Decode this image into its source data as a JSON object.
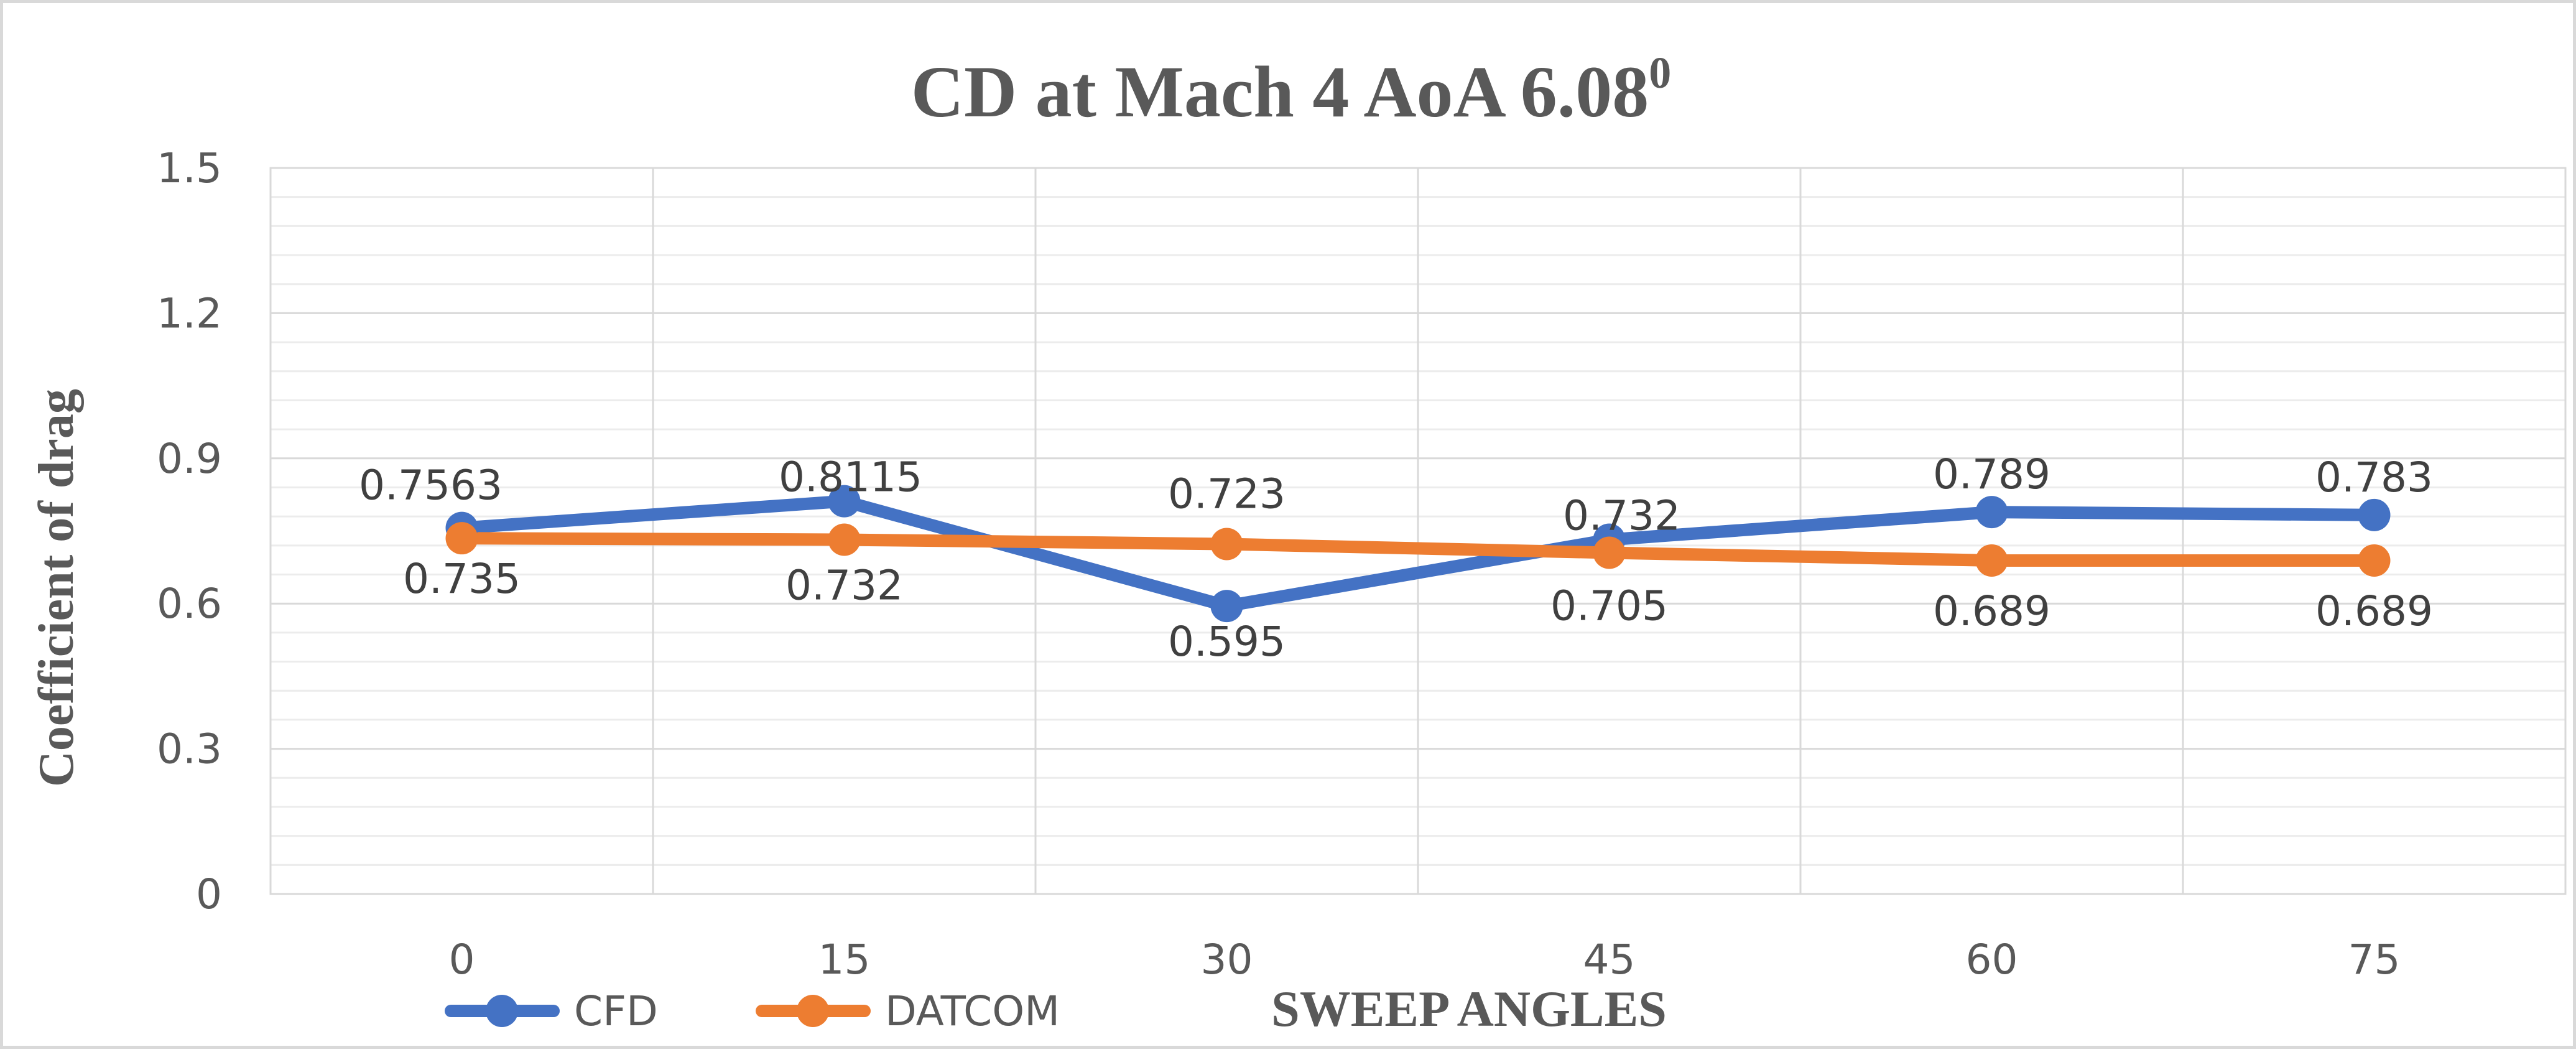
{
  "chart_data": {
    "type": "line",
    "title": "CD at Mach 4 AoA 6.08",
    "title_superscript": "0",
    "xlabel": "SWEEP ANGLES",
    "ylabel": "Coefficient of drag",
    "categories": [
      "0",
      "15",
      "30",
      "45",
      "60",
      "75"
    ],
    "ylim": [
      0,
      1.5
    ],
    "yticks": [
      "0",
      "0.3",
      "0.6",
      "0.9",
      "1.2",
      "1.5"
    ],
    "grid": true,
    "legend_position": "bottom-left",
    "series": [
      {
        "name": "CFD",
        "color": "#4472c4",
        "values": [
          0.7563,
          0.8115,
          0.595,
          0.732,
          0.789,
          0.783
        ],
        "labels": [
          "0.7563",
          "0.8115",
          "0.595",
          "0.732",
          "0.789",
          "0.783"
        ]
      },
      {
        "name": "DATCOM",
        "color": "#ed7d31",
        "values": [
          0.735,
          0.732,
          0.723,
          0.705,
          0.689,
          0.689
        ],
        "labels": [
          "0.735",
          "0.732",
          "0.723",
          "0.705",
          "0.689",
          "0.689"
        ]
      }
    ]
  }
}
